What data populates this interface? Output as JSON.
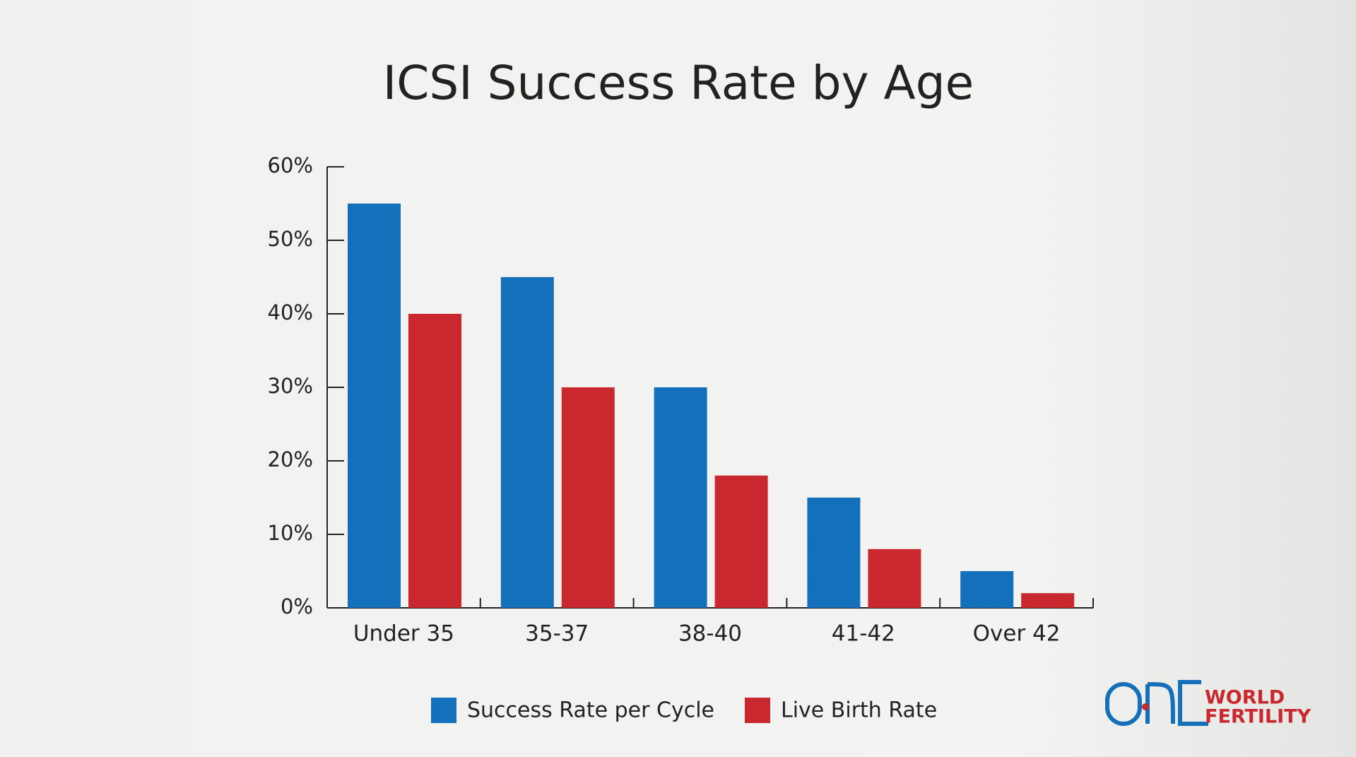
{
  "chart_data": {
    "type": "bar",
    "title": "ICSI Success Rate by Age",
    "categories": [
      "Under 35",
      "35-37",
      "38-40",
      "41-42",
      "Over 42"
    ],
    "series": [
      {
        "name": "Success Rate per Cycle",
        "color": "#1570bb",
        "values": [
          55,
          45,
          30,
          15,
          5
        ]
      },
      {
        "name": "Live Birth Rate",
        "color": "#c8282e",
        "values": [
          40,
          30,
          18,
          8,
          2
        ]
      }
    ],
    "ylim": [
      0,
      60
    ],
    "yticks": [
      {
        "value": 0,
        "label": "0%"
      },
      {
        "value": 10,
        "label": "10%"
      },
      {
        "value": 20,
        "label": "20%"
      },
      {
        "value": 30,
        "label": "30%"
      },
      {
        "value": 40,
        "label": "40%"
      },
      {
        "value": 50,
        "label": "50%"
      },
      {
        "value": 60,
        "label": "60%"
      }
    ],
    "grid": false
  },
  "logo": {
    "line1": "WORLD",
    "line2": "FERTILITY"
  }
}
